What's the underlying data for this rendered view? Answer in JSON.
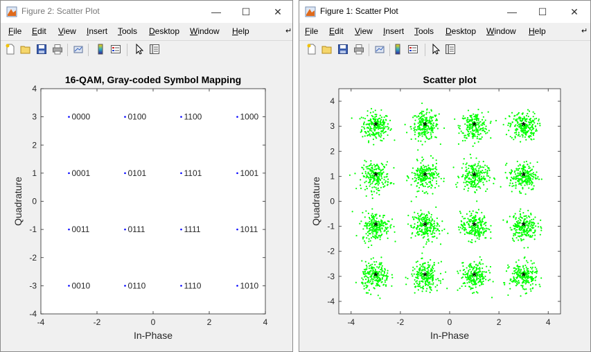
{
  "windows": {
    "figure2": {
      "title": "Figure 2: Scatter Plot",
      "menu": [
        "File",
        "Edit",
        "View",
        "Insert",
        "Tools",
        "Desktop",
        "Window",
        "Help"
      ]
    },
    "figure1": {
      "title": "Figure 1: Scatter Plot",
      "menu": [
        "File",
        "Edit",
        "View",
        "Insert",
        "Tools",
        "Desktop",
        "Window",
        "Help"
      ]
    }
  },
  "chart_data": [
    {
      "type": "scatter",
      "title": "16-QAM, Gray-coded Symbol Mapping",
      "xlabel": "In-Phase",
      "ylabel": "Quadrature",
      "xlim": [
        -4,
        4
      ],
      "ylim": [
        -4,
        4
      ],
      "xticks": [
        "-4",
        "-2",
        "0",
        "2",
        "4"
      ],
      "yticks": [
        "-4",
        "-3",
        "-2",
        "-1",
        "0",
        "1",
        "2",
        "3",
        "4"
      ],
      "grid": false,
      "marker_color": "#0000ff",
      "points": [
        {
          "x": -3,
          "y": 3,
          "label": "0000"
        },
        {
          "x": -1,
          "y": 3,
          "label": "0100"
        },
        {
          "x": 1,
          "y": 3,
          "label": "1100"
        },
        {
          "x": 3,
          "y": 3,
          "label": "1000"
        },
        {
          "x": -3,
          "y": 1,
          "label": "0001"
        },
        {
          "x": -1,
          "y": 1,
          "label": "0101"
        },
        {
          "x": 1,
          "y": 1,
          "label": "1101"
        },
        {
          "x": 3,
          "y": 1,
          "label": "1001"
        },
        {
          "x": -3,
          "y": -1,
          "label": "0011"
        },
        {
          "x": -1,
          "y": -1,
          "label": "0111"
        },
        {
          "x": 1,
          "y": -1,
          "label": "1111"
        },
        {
          "x": 3,
          "y": -1,
          "label": "1011"
        },
        {
          "x": -3,
          "y": -3,
          "label": "0010"
        },
        {
          "x": -1,
          "y": -3,
          "label": "0110"
        },
        {
          "x": 1,
          "y": -3,
          "label": "1110"
        },
        {
          "x": 3,
          "y": -3,
          "label": "1010"
        }
      ]
    },
    {
      "type": "scatter",
      "title": "Scatter plot",
      "xlabel": "In-Phase",
      "ylabel": "Quadrature",
      "xlim": [
        -4.5,
        4.5
      ],
      "ylim": [
        -4.5,
        4.5
      ],
      "xticks": [
        "-4",
        "-2",
        "0",
        "2",
        "4"
      ],
      "yticks": [
        "-4",
        "-3",
        "-2",
        "-1",
        "0",
        "1",
        "2",
        "3",
        "4"
      ],
      "grid": false,
      "series": [
        {
          "marker": "dot",
          "color": "#00ff00",
          "description_note": "received noisy symbols clustered around each constellation point",
          "centers": [
            [
              -3,
              3
            ],
            [
              -1,
              3
            ],
            [
              1,
              3
            ],
            [
              3,
              3
            ],
            [
              -3,
              1
            ],
            [
              -1,
              1
            ],
            [
              1,
              1
            ],
            [
              3,
              1
            ],
            [
              -3,
              -1
            ],
            [
              -1,
              -1
            ],
            [
              1,
              -1
            ],
            [
              3,
              -1
            ],
            [
              -3,
              -3
            ],
            [
              -1,
              -3
            ],
            [
              1,
              -3
            ],
            [
              3,
              -3
            ]
          ],
          "points_per_cluster": 220,
          "spread_sigma": 0.28
        },
        {
          "marker": "asterisk",
          "color": "#000000",
          "points": [
            [
              -3,
              3
            ],
            [
              -1,
              3
            ],
            [
              1,
              3
            ],
            [
              3,
              3
            ],
            [
              -3,
              1
            ],
            [
              -1,
              1
            ],
            [
              1,
              1
            ],
            [
              3,
              1
            ],
            [
              -3,
              -1
            ],
            [
              -1,
              -1
            ],
            [
              1,
              -1
            ],
            [
              3,
              -1
            ],
            [
              -3,
              -3
            ],
            [
              -1,
              -3
            ],
            [
              1,
              -3
            ],
            [
              3,
              -3
            ]
          ]
        }
      ]
    }
  ]
}
